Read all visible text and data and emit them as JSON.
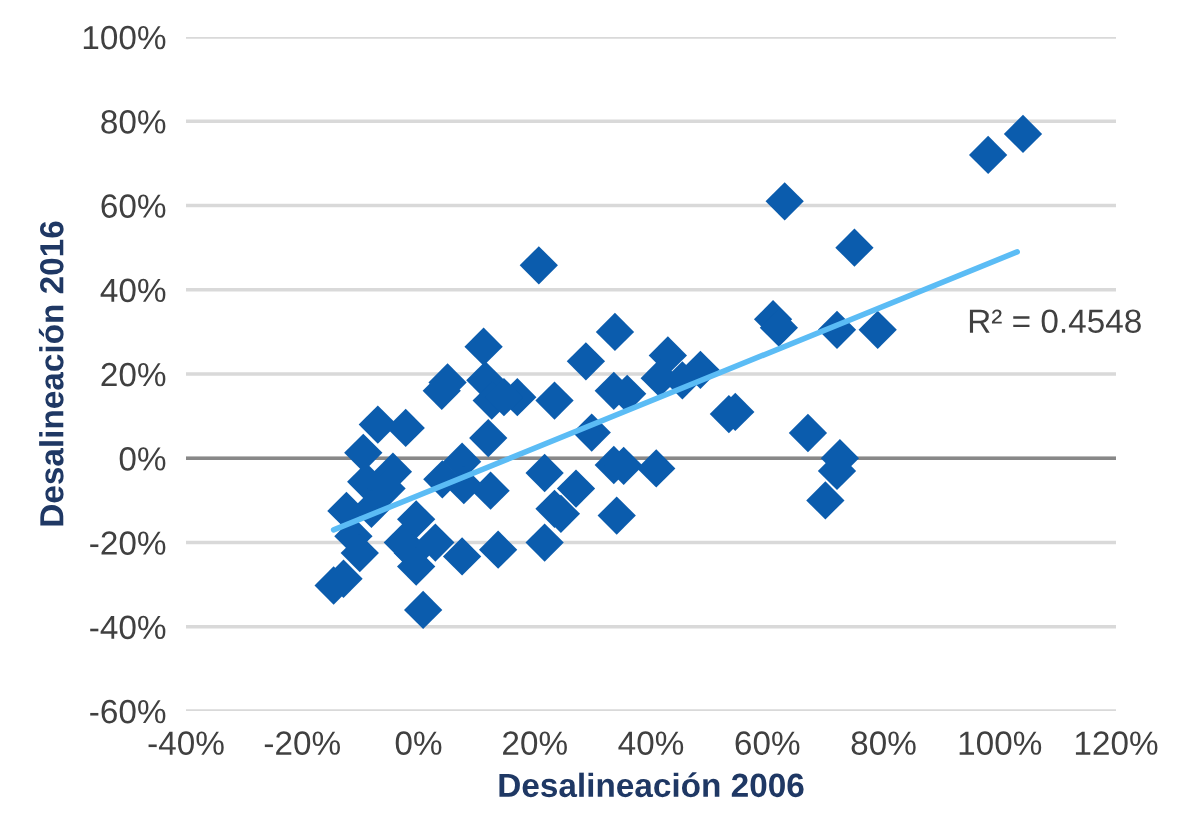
{
  "chart_data": {
    "type": "scatter",
    "xlabel": "Desalineación 2006",
    "ylabel": "Desalineación 2016",
    "series": [
      {
        "color": "#0b5cad",
        "marker": "diamond",
        "x": [
          104,
          98,
          63,
          75,
          61,
          62,
          72,
          79,
          54.5,
          67,
          72.5,
          72,
          70,
          20.7,
          33.8,
          11.2,
          28.8,
          42.9,
          48.5,
          41.5,
          45.4,
          5,
          4,
          11.5,
          12.6,
          17,
          14.7,
          23.4,
          33.6,
          35.9,
          53.4,
          -7,
          -2.2,
          12,
          29.8,
          -9.5,
          7.5,
          21.7,
          33.6,
          35.3,
          40.9,
          -4.4,
          4.1,
          7.8,
          -9,
          -5.5,
          12.4,
          27.1,
          -12.4,
          -8.1,
          23.4,
          24.5,
          34.1,
          -0.4,
          -11.2,
          -2.7,
          2.9,
          -10.1,
          -1,
          7.5,
          13.7,
          21.7,
          -0.4,
          -12.9,
          -14.6,
          0.8
        ],
        "values": [
          77,
          72,
          61,
          50,
          33,
          31,
          30.5,
          30.5,
          11,
          6,
          0,
          -3,
          -10,
          45.8,
          30,
          26.5,
          23,
          24.4,
          21,
          19,
          18.5,
          18,
          16,
          18.5,
          13.7,
          14.5,
          14.5,
          13.7,
          16,
          15.3,
          10.5,
          8,
          7.2,
          4.8,
          6.1,
          1.3,
          -0.8,
          -3.5,
          -1.6,
          -1.8,
          -2.4,
          -3.2,
          -5,
          -6.4,
          -5.6,
          -7.2,
          -7.7,
          -7.2,
          -12.5,
          -12,
          -12,
          -13.2,
          -13.6,
          -14.5,
          -18.5,
          -20,
          -20,
          -22.5,
          -22.5,
          -23.3,
          -21.7,
          -20,
          -25.7,
          -28.6,
          -30.2,
          -36
        ]
      },
      {
        "type": "line",
        "color": "#5bbcf5",
        "marker": "none",
        "line_style": "solid",
        "x": [
          -14.6,
          103
        ],
        "values": [
          -17,
          49
        ]
      }
    ],
    "annotations": [
      {
        "text": "R² = 0.4548",
        "x": 103,
        "y": 49
      }
    ],
    "ref_lines": [
      {
        "axis": "y",
        "value": 0,
        "color": "#888888"
      }
    ],
    "xlim": [
      -40,
      120
    ],
    "ylim": [
      -60,
      100
    ],
    "xticks": [
      {
        "value": -40,
        "label": "-40%"
      },
      {
        "value": -20,
        "label": "-20%"
      },
      {
        "value": 0,
        "label": "0%"
      },
      {
        "value": 20,
        "label": "20%"
      },
      {
        "value": 40,
        "label": "40%"
      },
      {
        "value": 60,
        "label": "60%"
      },
      {
        "value": 80,
        "label": "80%"
      },
      {
        "value": 100,
        "label": "100%"
      },
      {
        "value": 120,
        "label": "120%"
      }
    ],
    "yticks": [
      {
        "value": -60,
        "label": "-60%"
      },
      {
        "value": -40,
        "label": "-40%"
      },
      {
        "value": -20,
        "label": "-20%"
      },
      {
        "value": 0,
        "label": "0%"
      },
      {
        "value": 20,
        "label": "20%"
      },
      {
        "value": 40,
        "label": "40%"
      },
      {
        "value": 60,
        "label": "60%"
      },
      {
        "value": 80,
        "label": "80%"
      },
      {
        "value": 100,
        "label": "100%"
      }
    ],
    "grid": "y"
  }
}
